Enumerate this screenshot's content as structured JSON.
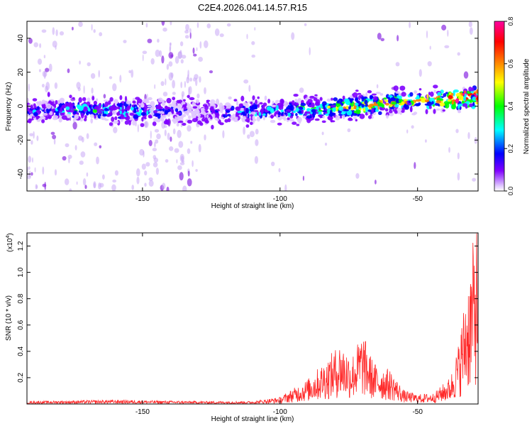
{
  "title": "C2E4.2026.041.14.57.R15",
  "chart_data": [
    {
      "type": "heatmap",
      "xlabel": "Height of straight line (km)",
      "ylabel": "Frequency (Hz)",
      "xlim": [
        -192,
        -28
      ],
      "ylim": [
        -50,
        50
      ],
      "xticks": [
        -150,
        -100,
        -50
      ],
      "yticks": [
        -40,
        -20,
        0,
        20,
        40
      ],
      "colorbar": {
        "label": "Normalized spectral amplitude",
        "range": [
          0,
          0.8
        ],
        "ticks": [
          "0.0",
          "0.2",
          "0.4",
          "0.6",
          "0.8"
        ],
        "colors": [
          "#ffffff",
          "#e0c8ff",
          "#8000ff",
          "#0000ff",
          "#00ffff",
          "#00ff00",
          "#ffff00",
          "#ff8000",
          "#ff0000",
          "#ff00a0"
        ]
      },
      "ridge": {
        "description_points": [
          {
            "x": -190,
            "y": -2
          },
          {
            "x": -150,
            "y": -3
          },
          {
            "x": -110,
            "y": -3
          },
          {
            "x": -90,
            "y": -2
          },
          {
            "x": -70,
            "y": 0
          },
          {
            "x": -50,
            "y": 3
          },
          {
            "x": -30,
            "y": 5
          }
        ],
        "peak_amplitude": [
          {
            "x": -190,
            "a": 0.25
          },
          {
            "x": -170,
            "a": 0.35
          },
          {
            "x": -150,
            "a": 0.3
          },
          {
            "x": -130,
            "a": 0.15
          },
          {
            "x": -110,
            "a": 0.3
          },
          {
            "x": -90,
            "a": 0.35
          },
          {
            "x": -70,
            "a": 0.55
          },
          {
            "x": -50,
            "a": 0.45
          },
          {
            "x": -31,
            "a": 0.75
          }
        ]
      },
      "noise_bands": [
        {
          "from": -192,
          "to": -165,
          "density": 0.7
        },
        {
          "from": -150,
          "to": -128,
          "density": 1.0
        },
        {
          "from": -112,
          "to": -108,
          "density": 0.6
        }
      ]
    },
    {
      "type": "line",
      "xlabel": "Height of straight line (km)",
      "ylabel": "SNR (10 * v/v)",
      "scale_label": "(x10",
      "scale_exp": "4",
      "xlim": [
        -192,
        -28
      ],
      "ylim": [
        0,
        1.3
      ],
      "xticks": [
        -150,
        -100,
        -50
      ],
      "yticks": [
        "0.2",
        "0.4",
        "0.6",
        "0.8",
        "1.0",
        "1.2"
      ],
      "color": "#ff2a2a",
      "envelope": [
        {
          "x": -192,
          "y": 0.02
        },
        {
          "x": -160,
          "y": 0.03
        },
        {
          "x": -130,
          "y": 0.02
        },
        {
          "x": -110,
          "y": 0.02
        },
        {
          "x": -100,
          "y": 0.05
        },
        {
          "x": -90,
          "y": 0.18
        },
        {
          "x": -82,
          "y": 0.35
        },
        {
          "x": -78,
          "y": 0.45
        },
        {
          "x": -74,
          "y": 0.35
        },
        {
          "x": -70,
          "y": 0.52
        },
        {
          "x": -66,
          "y": 0.3
        },
        {
          "x": -60,
          "y": 0.25
        },
        {
          "x": -55,
          "y": 0.1
        },
        {
          "x": -50,
          "y": 0.07
        },
        {
          "x": -44,
          "y": 0.08
        },
        {
          "x": -38,
          "y": 0.2
        },
        {
          "x": -35,
          "y": 0.45
        },
        {
          "x": -33,
          "y": 0.75
        },
        {
          "x": -31,
          "y": 1.0
        },
        {
          "x": -29,
          "y": 1.3
        }
      ]
    }
  ]
}
